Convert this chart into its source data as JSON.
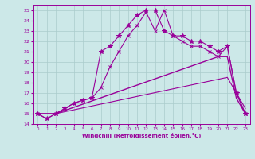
{
  "background_color": "#cce8e8",
  "grid_color": "#aacccc",
  "line_color": "#990099",
  "xlim": [
    -0.5,
    23.5
  ],
  "ylim": [
    14,
    25.5
  ],
  "xticks": [
    0,
    1,
    2,
    3,
    4,
    5,
    6,
    7,
    8,
    9,
    10,
    11,
    12,
    13,
    14,
    15,
    16,
    17,
    18,
    19,
    20,
    21,
    22,
    23
  ],
  "yticks": [
    14,
    15,
    16,
    17,
    18,
    19,
    20,
    21,
    22,
    23,
    24,
    25
  ],
  "xlabel": "Windchill (Refroidissement éolien,°C)",
  "series": [
    {
      "x": [
        0,
        1,
        2,
        3,
        4,
        5,
        6,
        7,
        8,
        9,
        10,
        11,
        12,
        13,
        14,
        15,
        16,
        17,
        18,
        19,
        20,
        21,
        22,
        23
      ],
      "y": [
        15.0,
        14.5,
        15.0,
        15.5,
        16.0,
        16.3,
        16.5,
        17.5,
        19.5,
        21.0,
        22.5,
        23.5,
        24.8,
        23.0,
        25.0,
        22.5,
        22.0,
        21.5,
        21.5,
        21.0,
        20.5,
        21.5,
        17.0,
        15.0
      ],
      "marker": "x",
      "markersize": 3,
      "linewidth": 0.8
    },
    {
      "x": [
        0,
        1,
        2,
        3,
        4,
        5,
        6,
        7,
        8,
        9,
        10,
        11,
        12,
        13,
        14,
        15,
        16,
        17,
        18,
        19,
        20,
        21,
        22,
        23
      ],
      "y": [
        15.0,
        14.5,
        15.0,
        15.5,
        16.0,
        16.3,
        16.5,
        21.0,
        21.5,
        22.5,
        23.5,
        24.5,
        25.0,
        25.0,
        23.0,
        22.5,
        22.5,
        22.0,
        22.0,
        21.5,
        21.0,
        21.5,
        17.0,
        15.0
      ],
      "marker": "*",
      "markersize": 4,
      "linewidth": 0.8
    },
    {
      "x": [
        0,
        2,
        20,
        21,
        22,
        23
      ],
      "y": [
        15.0,
        15.0,
        20.5,
        20.5,
        16.5,
        15.0
      ],
      "marker": null,
      "markersize": 0,
      "linewidth": 1.0
    },
    {
      "x": [
        0,
        2,
        21,
        22,
        23
      ],
      "y": [
        15.0,
        15.0,
        18.5,
        17.0,
        15.5
      ],
      "marker": null,
      "markersize": 0,
      "linewidth": 0.8
    }
  ]
}
